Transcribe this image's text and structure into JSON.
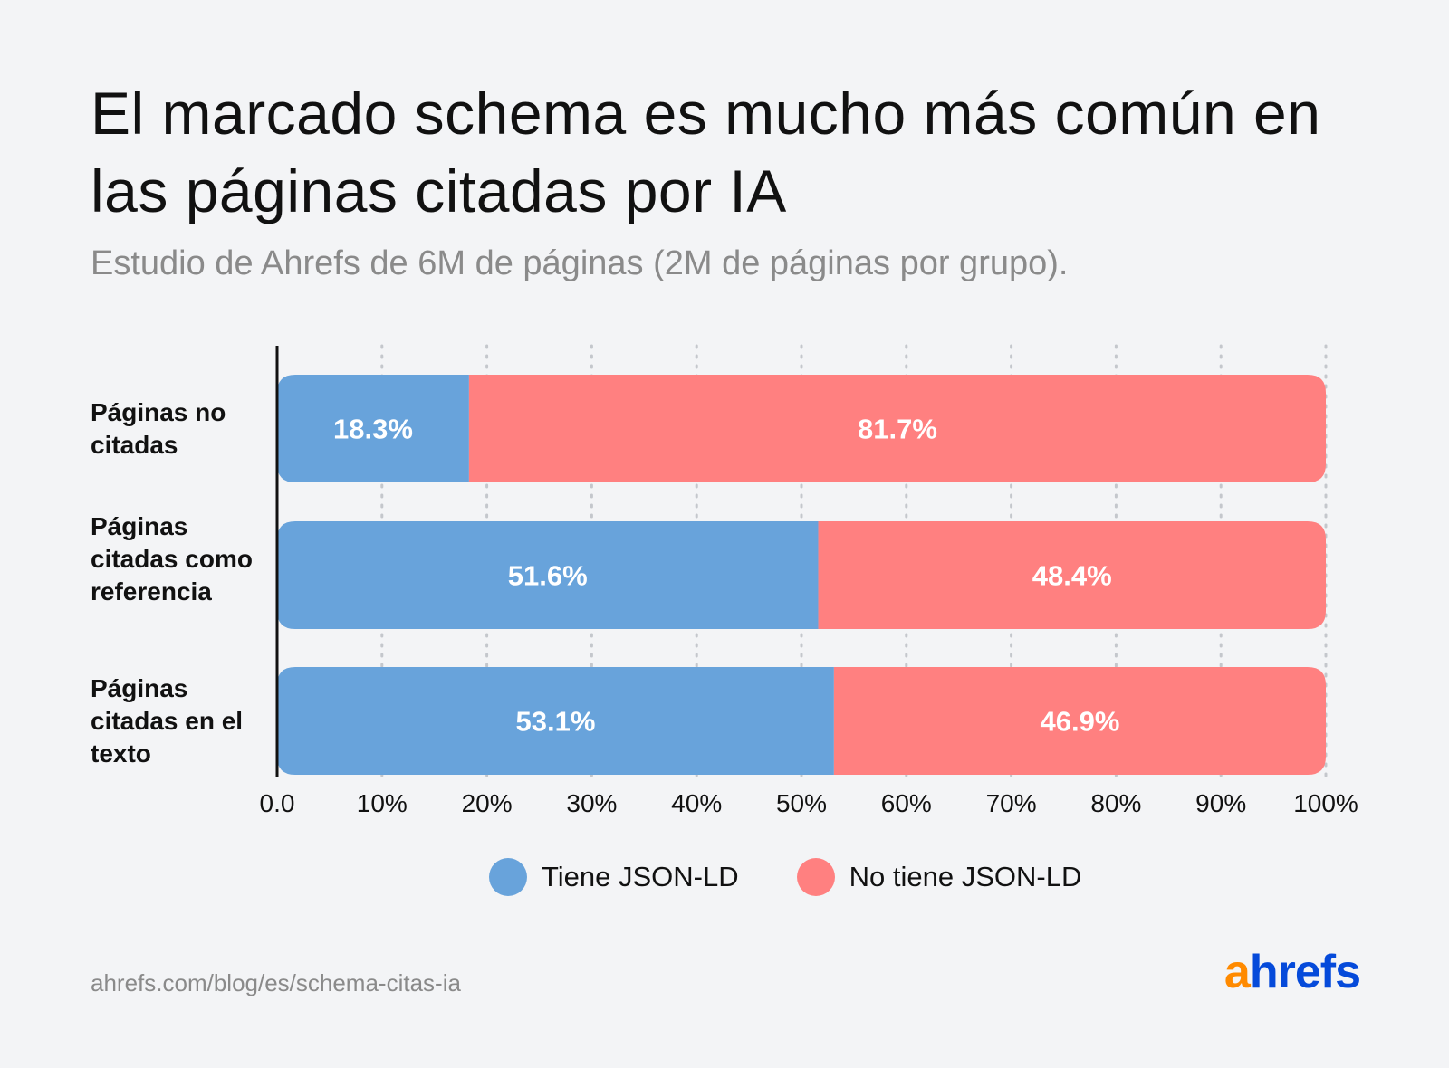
{
  "header": {
    "title": "El marcado schema es mucho más común en las páginas citadas por IA",
    "subtitle": "Estudio de Ahrefs de 6M de páginas (2M de páginas por grupo)."
  },
  "chart_data": {
    "type": "bar",
    "orientation": "horizontal",
    "stacked": true,
    "categories": [
      "Páginas no citadas",
      "Páginas citadas como referencia",
      "Páginas citadas en el texto"
    ],
    "series": [
      {
        "name": "Tiene JSON-LD",
        "values": [
          18.3,
          51.6,
          53.1
        ],
        "labels": [
          "18.3%",
          "51.6%",
          "53.1%"
        ],
        "color": "#68a3db"
      },
      {
        "name": "No tiene JSON-LD",
        "values": [
          81.7,
          48.4,
          46.9
        ],
        "labels": [
          "81.7%",
          "48.4%",
          "46.9%"
        ],
        "color": "#ff8080"
      }
    ],
    "x_ticks": [
      "0.0",
      "10%",
      "20%",
      "30%",
      "40%",
      "50%",
      "60%",
      "70%",
      "80%",
      "90%",
      "100%"
    ],
    "xlim": [
      0,
      100
    ],
    "grid": "vertical dotted",
    "legend_position": "bottom"
  },
  "footer": {
    "source_url": "ahrefs.com/blog/es/schema-citas-ia",
    "logo_a": "a",
    "logo_rest": "hrefs"
  }
}
